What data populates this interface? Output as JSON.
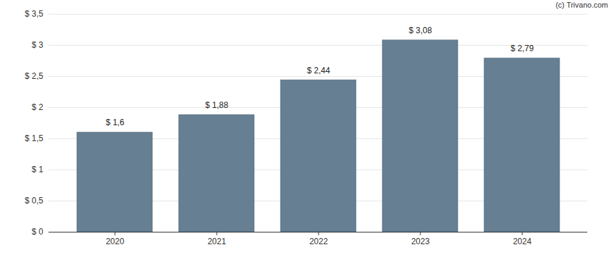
{
  "chart_data": {
    "type": "bar",
    "caption": "(c) Trivano.com",
    "categories": [
      "2020",
      "2021",
      "2022",
      "2023",
      "2024"
    ],
    "values": [
      1.6,
      1.88,
      2.44,
      3.08,
      2.79
    ],
    "value_labels": [
      "$ 1,6",
      "$ 1,88",
      "$ 2,44",
      "$ 3,08",
      "$ 2,79"
    ],
    "data_labels": true,
    "color": "#667f93",
    "ylim": [
      0,
      3.5
    ],
    "yticks": [
      {
        "value": 0,
        "label": "$ 0"
      },
      {
        "value": 0.5,
        "label": "$ 0,5"
      },
      {
        "value": 1,
        "label": "$ 1"
      },
      {
        "value": 1.5,
        "label": "$ 1,5"
      },
      {
        "value": 2,
        "label": "$ 2"
      },
      {
        "value": 2.5,
        "label": "$ 2,5"
      },
      {
        "value": 3,
        "label": "$ 3"
      },
      {
        "value": 3.5,
        "label": "$ 3,5"
      }
    ],
    "grid": true
  }
}
